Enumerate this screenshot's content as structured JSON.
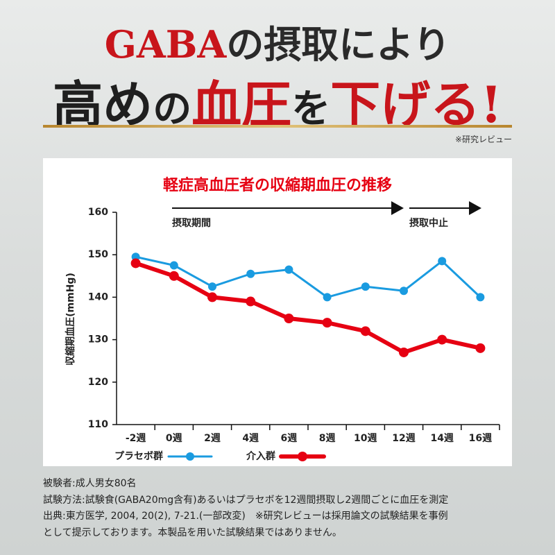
{
  "header": {
    "line1": [
      "GABA",
      "の摂取により"
    ],
    "line2": [
      "高め",
      "の",
      "血圧",
      "を",
      "下げる!"
    ],
    "note": "※研究レビュー"
  },
  "chart_data": {
    "type": "line",
    "title": "軽症高血圧者の収縮期血圧の推移",
    "y_label": "収縮期血圧(mmHg)",
    "categories": [
      "-2週",
      "0週",
      "2週",
      "4週",
      "6週",
      "8週",
      "10週",
      "12週",
      "14週",
      "16週"
    ],
    "series": [
      {
        "name": "プラセボ群",
        "color": "#1a9be0",
        "values": [
          149.5,
          147.5,
          142.5,
          145.5,
          146.5,
          140,
          142.5,
          141.5,
          148.5,
          140
        ]
      },
      {
        "name": "介入群",
        "color": "#e60012",
        "values": [
          148,
          145,
          140,
          139,
          135,
          134,
          132,
          127,
          130,
          128
        ]
      }
    ],
    "ylim": [
      110,
      160
    ],
    "yticks": [
      110,
      120,
      130,
      140,
      150,
      160
    ],
    "grid": false,
    "annotations": [
      "摂取期間",
      "摂取中止"
    ]
  },
  "footnotes": [
    "被験者:成人男女80名",
    "試験方法:試験食(GABA20mg含有)あるいはプラセボを12週間摂取し2週間ごとに血圧を測定",
    "出典:東方医学, 2004, 20(2), 7-21.(一部改変)　※研究レビューは採用論文の試験結果を事例",
    "として提示しております。本製品を用いた試験結果ではありません。"
  ]
}
